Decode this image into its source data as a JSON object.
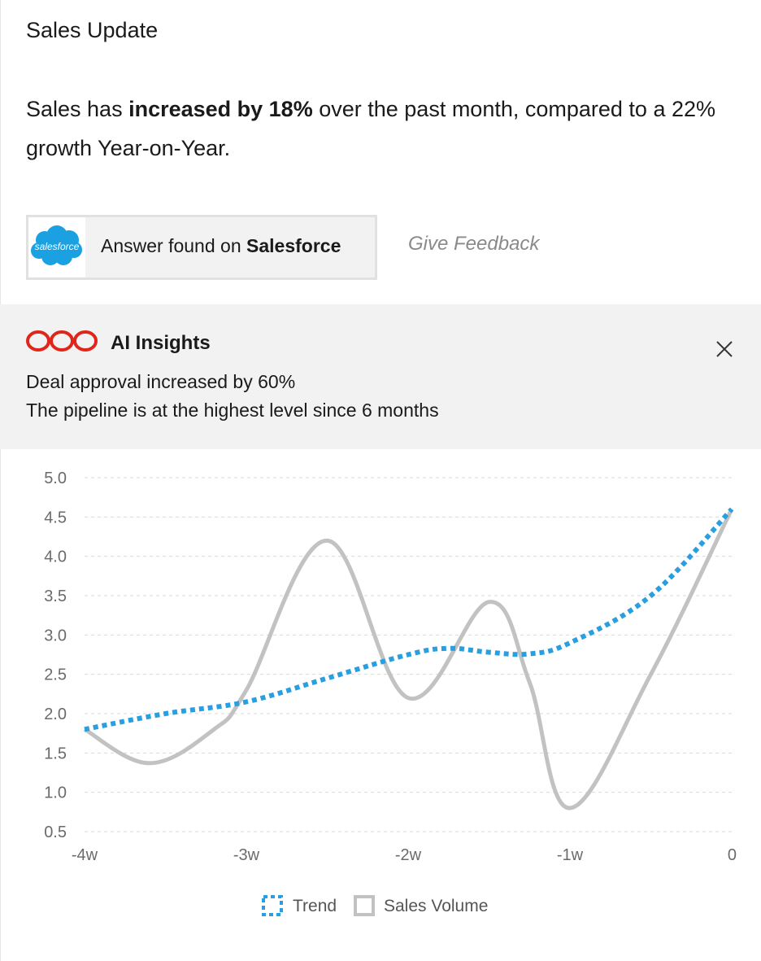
{
  "card": {
    "title": "Sales Update",
    "summary_prefix": "Sales has ",
    "summary_bold": "increased by 18%",
    "summary_suffix": " over the past month, compared to a 22% growth Year-on-Year."
  },
  "source": {
    "logo_text": "salesforce",
    "label_prefix": "Answer found on ",
    "label_bold": "Salesforce",
    "feedback": "Give Feedback"
  },
  "insights": {
    "title": "AI Insights",
    "lines": [
      "Deal approval increased by 60%",
      "The pipeline is at the highest level since 6 months"
    ]
  },
  "colors": {
    "trend": "#2a9fe0",
    "sales_volume": "#c2c2c2",
    "insights_logo": "#e0261b",
    "salesforce_blue": "#1ba1e2"
  },
  "chart_data": {
    "type": "line",
    "x": [
      "-4w",
      "-3.6w",
      "-3w",
      "-2.5w",
      "-2w",
      "-1.5w",
      "-1w",
      "-0.5w",
      "0"
    ],
    "x_tick_labels": [
      "-4w",
      "-3w",
      "-2w",
      "-1w",
      "0"
    ],
    "y_tick_labels": [
      "5.0",
      "4.5",
      "4.0",
      "3.5",
      "3.0",
      "2.5",
      "2.0",
      "1.5",
      "1.0",
      "0.5"
    ],
    "ylim": [
      0.5,
      5.0
    ],
    "grid": true,
    "legend": "bottom",
    "series": [
      {
        "name": "Trend",
        "style": "dotted",
        "x": [
          -4,
          -3.5,
          -3,
          -2.5,
          -2,
          -1.75,
          -1.5,
          -1.25,
          -1,
          -0.5,
          0
        ],
        "values": [
          1.8,
          2.0,
          2.15,
          2.45,
          2.75,
          2.83,
          2.78,
          2.76,
          2.9,
          3.5,
          4.6
        ]
      },
      {
        "name": "Sales Volume",
        "style": "solid",
        "x": [
          -4,
          -3.6,
          -3.2,
          -3,
          -2.5,
          -2,
          -1.5,
          -1.25,
          -1,
          -0.5,
          0
        ],
        "values": [
          1.8,
          1.37,
          1.8,
          2.3,
          4.2,
          2.2,
          3.42,
          2.4,
          0.8,
          2.5,
          4.6
        ]
      }
    ]
  }
}
